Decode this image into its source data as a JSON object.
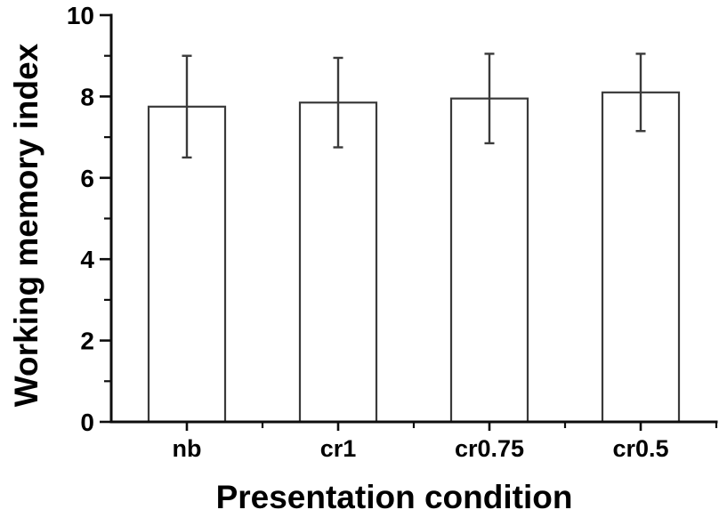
{
  "chart_data": {
    "type": "bar",
    "title": "",
    "xlabel": "Presentation condition",
    "ylabel": "Working memory index",
    "categories": [
      "nb",
      "cr1",
      "cr0.75",
      "cr0.5"
    ],
    "values": [
      7.75,
      7.85,
      7.95,
      8.1
    ],
    "error_bars": [
      1.25,
      1.1,
      1.1,
      0.95
    ],
    "ylim": [
      0,
      10
    ],
    "yticks_major": [
      0,
      2,
      4,
      6,
      8,
      10
    ],
    "yticks_minor": [
      1,
      3,
      5,
      7,
      9
    ],
    "grid": false,
    "legend": "none",
    "bar_fill": "#ffffff",
    "bar_stroke": "#3a3a3a",
    "error_color": "#3a3a3a",
    "axis_color": "#0d0d0d",
    "text_color": "#000000"
  }
}
